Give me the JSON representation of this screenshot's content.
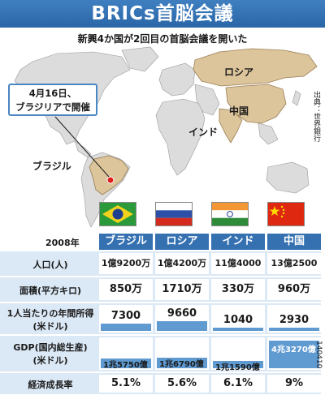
{
  "title": "BRICs首脳会議",
  "subtitle": "新興4か国が2回目の首脳会議を開いた",
  "callout": {
    "line1": "4月16日、",
    "line2": "ブラジリアで開催"
  },
  "map_labels": {
    "russia": "ロシア",
    "china": "中国",
    "india": "インド",
    "brazil": "ブラジル"
  },
  "source": "出典：世界銀行",
  "year": "2008年",
  "columns": [
    "ブラジル",
    "ロシア",
    "インド",
    "中国"
  ],
  "rows": {
    "population": {
      "label": "人口(人)",
      "values": [
        "1億9200万",
        "1億4200万",
        "11億4000万",
        "13億2500万"
      ]
    },
    "area": {
      "label": "面積(平方キロ)",
      "values": [
        "850万",
        "1710万",
        "330万",
        "960万"
      ]
    },
    "gni": {
      "label_line1": "1人当たりの年間所得",
      "label_line2": "(米ドル)",
      "values": [
        "7300",
        "9660",
        "1040",
        "2930"
      ],
      "numbers": [
        7300,
        9660,
        1040,
        2930
      ]
    },
    "gdp": {
      "label_line1": "GDP(国内総生産)",
      "label_line2": "(米ドル)",
      "values": [
        "1兆5750億",
        "1兆6790億",
        "1兆1590億",
        "4兆3270億"
      ],
      "numbers": [
        15750,
        16790,
        11590,
        43270
      ]
    },
    "growth": {
      "label": "経済成長率",
      "values": [
        "5.1%",
        "5.6%",
        "6.1%",
        "9%"
      ]
    }
  },
  "credit": "140410",
  "agency": "AFP",
  "colors": {
    "title_blue": "#2a66a8",
    "band": "#dbe8f5",
    "bar": "#5f9ad1",
    "bric_land": "#dcc49b",
    "land": "#dcdcdc",
    "sea": "#ffffff"
  }
}
